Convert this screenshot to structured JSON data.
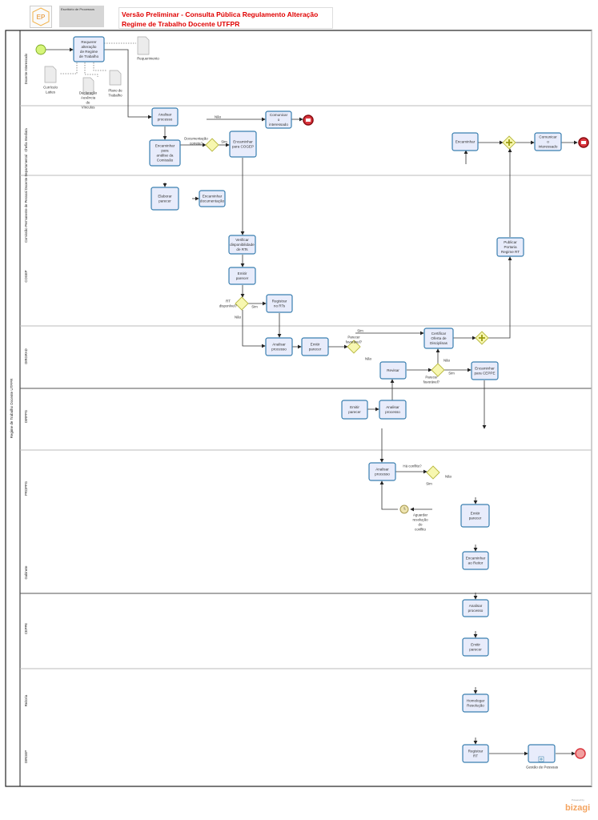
{
  "header": {
    "title": "Versão Preliminar  - Consulta Pública Regulamento Alteração Regime de Trabalho Docente UTFPR",
    "logo_text": "EP",
    "org_text": "Escritório de Processos"
  },
  "pool": {
    "label": "Regime de Trabalho Docente UTFPR"
  },
  "lanes": [
    "Docente Interessado",
    "Chefia Imediata",
    "Comissão Permanente de Pessoal Docente Departamental",
    "COGEP",
    "DIRGRAD",
    "DIRPPG",
    "PROPPG",
    "Gabinete",
    "CEPPE",
    "Reitoria",
    "DIRGEP"
  ],
  "nodes": {
    "t1": "Requerer alteração de Regime de Trabalho",
    "d0": "Requerimento",
    "d1": "Currículo Lattes",
    "d2": "Declaração Ausência de Vínculos",
    "d3": "Plano de Trabalho",
    "t2": "Analisar processo",
    "t3": "Encaminhar para análise da Comissão",
    "t4": "Encaminhar para COGEP",
    "t5": "Comunicar o interessado",
    "t6": "Encaminhar",
    "t7": "Comunicar o interessado",
    "t8": "Elaborar parecer",
    "t9": "Encaminhar documentação",
    "t10": "Verificar disponibilidade de RTs",
    "t11": "Emitir parecer",
    "t12": "Registrar no RTs",
    "t13": "Publicar Portaria Regime RT",
    "t14": "Analisar processo",
    "t15": "Emitir parecer",
    "t16": "Certificar Oferta de Disciplinas",
    "t17": "Revisar",
    "t18": "Encaminhar para CEPPE",
    "t19": "Emitir parecer",
    "t20": "Analisar processo",
    "t21": "Analisar processo",
    "t22": "Emitir parecer",
    "t23": "Encaminhar ao Reitor",
    "t24": "Analisar processo",
    "t25": "Emitir parecer",
    "t26": "Homologar Resolução",
    "t27": "Registrar RT",
    "sp1": "Gestão de Pessoas",
    "g1": "Documentação correta?",
    "g2": "RT disponível?",
    "g3": "Parecer favorável?",
    "g5": "Parecer favorável?",
    "g6": "Há conflito?",
    "timer": "Aguardar resolução do conflito"
  },
  "flow_labels": {
    "nao1": "Não",
    "sim1": "Sim",
    "sim2": "Sim",
    "nao2": "Não",
    "sim3": "Sim",
    "nao3": "Não",
    "sim5": "Sim",
    "nao5": "Não",
    "sim6": "Sim",
    "nao6": "Não"
  },
  "footer": {
    "brand": "bizagi",
    "brand_sub": "Powered by"
  },
  "colors": {
    "task_fill": "#e8ecfb",
    "task_stroke": "#3a7fb0",
    "gateway": "#f7f7b0",
    "end": "#d9363e",
    "start": "#d6f57a"
  }
}
